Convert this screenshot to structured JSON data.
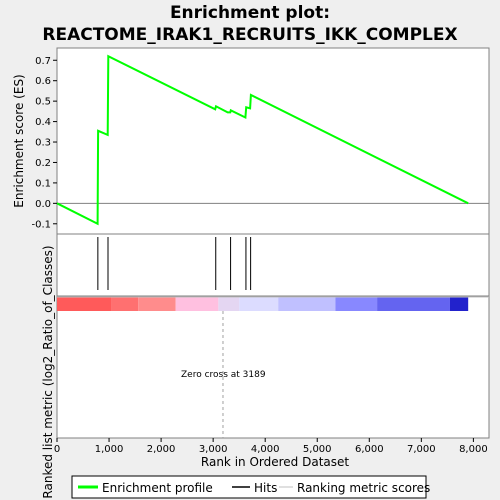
{
  "chart_data": {
    "type": "line",
    "title": "Enrichment plot:",
    "subtitle": "REACTOME_IRAK1_RECRUITS_IKK_COMPLEX",
    "xlabel": "Rank in Ordered Dataset",
    "ylabel_top": "Enrichment score (ES)",
    "ylabel_bottom": "Ranked list metric (log2_Ratio_of_Classes)",
    "xlim": [
      0,
      8300
    ],
    "ylim": [
      -0.15,
      0.76
    ],
    "x_ticks": [
      0,
      1000,
      2000,
      3000,
      4000,
      5000,
      6000,
      7000,
      8000
    ],
    "x_tick_labels": [
      "0",
      "1,000",
      "2,000",
      "3,000",
      "4,000",
      "5,000",
      "6,000",
      "7,000",
      "8,000"
    ],
    "y_ticks": [
      -0.1,
      0.0,
      0.1,
      0.2,
      0.3,
      0.4,
      0.5,
      0.6,
      0.7
    ],
    "y_tick_labels": [
      "-0.1",
      "0.0",
      "0.1",
      "0.2",
      "0.3",
      "0.4",
      "0.5",
      "0.6",
      "0.7"
    ],
    "series": [
      {
        "name": "Enrichment profile",
        "color": "#00ff00",
        "x": [
          0,
          780,
          790,
          975,
          985,
          3040,
          3055,
          3280,
          3330,
          3340,
          3620,
          3635,
          3710,
          3725,
          7900
        ],
        "y": [
          0.0,
          -0.1,
          0.355,
          0.335,
          0.72,
          0.46,
          0.475,
          0.445,
          0.445,
          0.455,
          0.42,
          0.47,
          0.465,
          0.53,
          0.0
        ]
      }
    ],
    "hits": [
      785,
      980,
      3050,
      3335,
      3630,
      3720
    ],
    "zero_cross": 3189,
    "zero_cross_label": "Zero cross at 3189",
    "metric_bands": [
      {
        "start": 0,
        "end": 1050,
        "color": "#ff5a5a"
      },
      {
        "start": 1050,
        "end": 1560,
        "color": "#ff7070"
      },
      {
        "start": 1560,
        "end": 2280,
        "color": "#ff8c8c"
      },
      {
        "start": 2280,
        "end": 3100,
        "color": "#ffc0e0"
      },
      {
        "start": 3100,
        "end": 3500,
        "color": "#e4d6f2"
      },
      {
        "start": 3500,
        "end": 4250,
        "color": "#dcdcff"
      },
      {
        "start": 4250,
        "end": 5350,
        "color": "#c0c0ff"
      },
      {
        "start": 5350,
        "end": 6150,
        "color": "#8888ff"
      },
      {
        "start": 6150,
        "end": 7550,
        "color": "#6464f0"
      },
      {
        "start": 7550,
        "end": 7900,
        "color": "#2222cc"
      }
    ],
    "legend": {
      "placement": "bottom",
      "entries": [
        {
          "label": "Enrichment profile",
          "color": "#00ff00"
        },
        {
          "label": "Hits",
          "color": "#000000"
        },
        {
          "label": "Ranking metric scores",
          "color": "#c0c0c0"
        }
      ]
    }
  }
}
